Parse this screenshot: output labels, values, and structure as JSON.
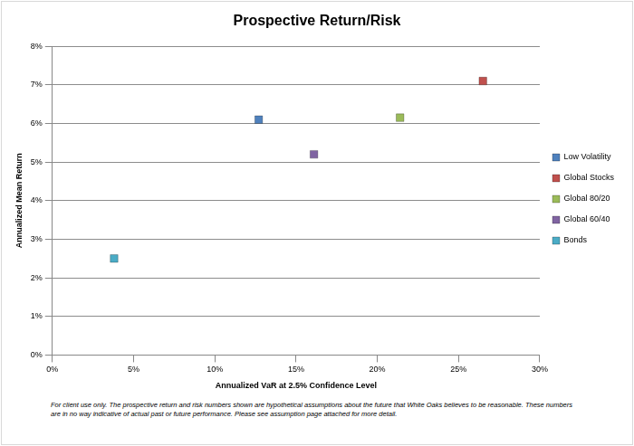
{
  "chart_data": {
    "type": "scatter",
    "title": "Prospective Return/Risk",
    "x_label": "Annualized VaR at 2.5% Confidence Level",
    "y_label": "Annualized Mean Return",
    "footnote": "For client use only.  The prospective return and risk numbers shown are hypothetical assumptions about the future that White Oaks believes to be reasonable.  These numbers are in no way indicative of actual past or future performance.  Please see assumption page attached for more detail.",
    "series": [
      {
        "name": "Low Volatility",
        "color": "#4f81bd",
        "marker": "square",
        "x": [
          12.7
        ],
        "values": [
          6.1
        ]
      },
      {
        "name": "Global Stocks",
        "color": "#c0504d",
        "marker": "square",
        "x": [
          26.5
        ],
        "values": [
          7.1
        ]
      },
      {
        "name": "Global 80/20",
        "color": "#9bbb59",
        "marker": "square",
        "x": [
          21.4
        ],
        "values": [
          6.15
        ]
      },
      {
        "name": "Global 60/40",
        "color": "#8064a2",
        "marker": "square",
        "x": [
          16.1
        ],
        "values": [
          5.2
        ]
      },
      {
        "name": "Bonds",
        "color": "#4bacc6",
        "marker": "square",
        "x": [
          3.8
        ],
        "values": [
          2.5
        ]
      }
    ],
    "xlim": [
      0,
      30
    ],
    "xticks": [
      {
        "value": 0,
        "label": "0%"
      },
      {
        "value": 5,
        "label": "5%"
      },
      {
        "value": 10,
        "label": "10%"
      },
      {
        "value": 15,
        "label": "15%"
      },
      {
        "value": 20,
        "label": "20%"
      },
      {
        "value": 25,
        "label": "25%"
      },
      {
        "value": 30,
        "label": "30%"
      }
    ],
    "ylim": [
      0,
      8
    ],
    "yticks": [
      {
        "value": 0,
        "label": "0%"
      },
      {
        "value": 1,
        "label": "1%"
      },
      {
        "value": 2,
        "label": "2%"
      },
      {
        "value": 3,
        "label": "3%"
      },
      {
        "value": 4,
        "label": "4%"
      },
      {
        "value": 5,
        "label": "5%"
      },
      {
        "value": 6,
        "label": "6%"
      },
      {
        "value": 7,
        "label": "7%"
      },
      {
        "value": 8,
        "label": "8%"
      }
    ],
    "grid": "y",
    "legend": "right"
  }
}
